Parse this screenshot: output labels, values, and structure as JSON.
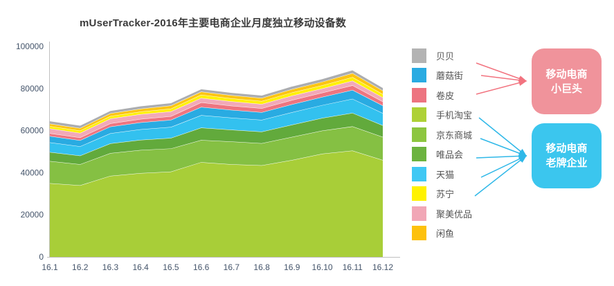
{
  "title": "mUserTracker-2016年主要电商企业月度独立移动设备数",
  "chart_data": {
    "type": "area",
    "stacked": true,
    "title": "mUserTracker-2016年主要电商企业月度独立移动设备数",
    "x": [
      "16.1",
      "16.2",
      "16.3",
      "16.4",
      "16.5",
      "16.6",
      "16.7",
      "16.8",
      "16.9",
      "16.10",
      "16.11",
      "16.12"
    ],
    "xlabel": "",
    "ylabel": "",
    "ylim": [
      0,
      100000
    ],
    "yticks": [
      0,
      20000,
      40000,
      60000,
      80000,
      100000
    ],
    "grid": false,
    "legend_position": "right",
    "series": [
      {
        "name": "手机淘宝",
        "color": "#a8ce38",
        "values": [
          35000,
          34000,
          38500,
          39800,
          40500,
          45000,
          44000,
          43500,
          46000,
          49000,
          50500,
          46000
        ]
      },
      {
        "name": "京东商城",
        "color": "#85c043",
        "values": [
          10500,
          10000,
          10800,
          11000,
          11000,
          10500,
          10800,
          10500,
          11000,
          11000,
          11500,
          11000
        ]
      },
      {
        "name": "唯品会",
        "color": "#62aa3c",
        "values": [
          4300,
          4100,
          4600,
          4800,
          5000,
          5900,
          5600,
          5500,
          5800,
          6000,
          6400,
          5500
        ]
      },
      {
        "name": "天猫",
        "color": "#33c1ef",
        "values": [
          4600,
          4400,
          4800,
          5000,
          5200,
          5900,
          5700,
          5600,
          5900,
          6100,
          6700,
          5800
        ]
      },
      {
        "name": "蘑菇街",
        "color": "#29abe2",
        "values": [
          3000,
          2900,
          3200,
          3300,
          3400,
          3900,
          3700,
          3600,
          3800,
          3900,
          4200,
          3600
        ]
      },
      {
        "name": "卷皮",
        "color": "#ee7580",
        "values": [
          1300,
          1300,
          1500,
          1600,
          1700,
          2200,
          2000,
          1900,
          2000,
          2000,
          2200,
          1900
        ]
      },
      {
        "name": "聚美优品",
        "color": "#f2a9b8",
        "values": [
          2300,
          2200,
          2300,
          2300,
          2300,
          2100,
          2100,
          2000,
          2100,
          2000,
          2200,
          2000
        ]
      },
      {
        "name": "苏宁",
        "color": "#fff100",
        "values": [
          1100,
          1100,
          1200,
          1200,
          1300,
          1500,
          1400,
          1400,
          1500,
          1500,
          1700,
          1500
        ]
      },
      {
        "name": "闲鱼",
        "color": "#fdc513",
        "values": [
          1200,
          1200,
          1300,
          1400,
          1500,
          1500,
          1500,
          1500,
          1600,
          1700,
          1900,
          1700
        ]
      },
      {
        "name": "贝贝",
        "color": "#abadb0",
        "values": [
          1300,
          1300,
          1300,
          1300,
          1300,
          1300,
          1300,
          1300,
          1400,
          1400,
          1500,
          1400
        ]
      }
    ],
    "legend": [
      {
        "label": "贝贝",
        "color": "#b3b3b3"
      },
      {
        "label": "蘑菇街",
        "color": "#29abe2"
      },
      {
        "label": "卷皮",
        "color": "#ed7480"
      },
      {
        "label": "手机淘宝",
        "color": "#aed136"
      },
      {
        "label": "京东商城",
        "color": "#8dc63f"
      },
      {
        "label": "唯品会",
        "color": "#6cb33f"
      },
      {
        "label": "天猫",
        "color": "#3fc8f4"
      },
      {
        "label": "苏宁",
        "color": "#fff200"
      },
      {
        "label": "聚美优品",
        "color": "#f1a7b6"
      },
      {
        "label": "闲鱼",
        "color": "#fdc10d"
      }
    ]
  },
  "annotations": {
    "groups": [
      {
        "label_line1": "移动电商",
        "label_line2": "小巨头",
        "box_color": "#f0939b",
        "arrow_color": "#f2737f",
        "members": [
          "贝贝",
          "蘑菇街",
          "卷皮"
        ]
      },
      {
        "label_line1": "移动电商",
        "label_line2": "老牌企业",
        "box_color": "#3bc6ee",
        "arrow_color": "#2fb8e8",
        "members": [
          "手机淘宝",
          "京东商城",
          "唯品会",
          "天猫",
          "苏宁"
        ]
      }
    ]
  }
}
